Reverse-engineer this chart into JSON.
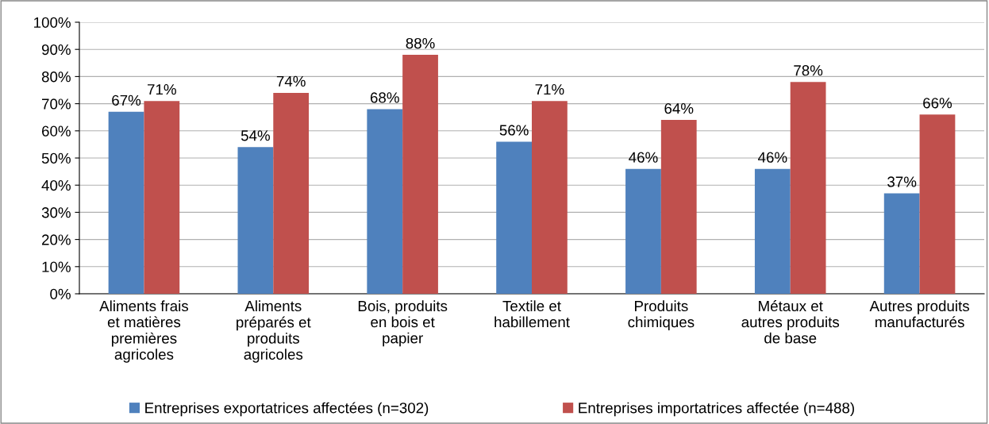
{
  "chart_data": {
    "type": "bar",
    "categories": [
      "Aliments frais\net matières\npremières\nagricoles",
      "Aliments\npréparés et\nproduits\nagricoles",
      "Bois, produits\nen bois et\npapier",
      "Textile et\nhabillement",
      "Produits\nchimiques",
      "Métaux et\nautres produits\nde base",
      "Autres produits\nmanufacturés"
    ],
    "series": [
      {
        "name": "Entreprises exportatrices affectées (n=302)",
        "color": "#4f81bd",
        "values": [
          67,
          54,
          68,
          56,
          46,
          46,
          37
        ]
      },
      {
        "name": "Entreprises importatrices affectée (n=488)",
        "color": "#c0504d",
        "values": [
          71,
          74,
          88,
          71,
          64,
          78,
          66
        ]
      }
    ],
    "ylim": [
      0,
      100
    ],
    "yticks": [
      {
        "value": 0,
        "label": "0%"
      },
      {
        "value": 10,
        "label": "10%"
      },
      {
        "value": 20,
        "label": "20%"
      },
      {
        "value": 30,
        "label": "30%"
      },
      {
        "value": 40,
        "label": "40%"
      },
      {
        "value": 50,
        "label": "50%"
      },
      {
        "value": 60,
        "label": "60%"
      },
      {
        "value": 70,
        "label": "70%"
      },
      {
        "value": 80,
        "label": "80%"
      },
      {
        "value": 90,
        "label": "90%"
      },
      {
        "value": 100,
        "label": "100%"
      }
    ],
    "value_labels": [
      [
        "67%",
        "54%",
        "68%",
        "56%",
        "46%",
        "46%",
        "37%"
      ],
      [
        "71%",
        "74%",
        "88%",
        "71%",
        "64%",
        "78%",
        "66%"
      ]
    ],
    "grid": "y",
    "legend": "bottom"
  }
}
